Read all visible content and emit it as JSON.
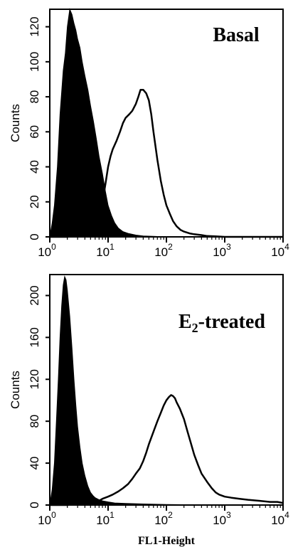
{
  "chart_data": [
    {
      "type": "area",
      "title": "Basal",
      "xlabel": "",
      "ylabel": "Counts",
      "xscale": "log",
      "xlim": [
        1,
        10000
      ],
      "ylim": [
        0,
        130
      ],
      "yticks": [
        0,
        20,
        40,
        60,
        80,
        100,
        120
      ],
      "xticks": [
        {
          "base": "10",
          "exp": "0"
        },
        {
          "base": "10",
          "exp": "1"
        },
        {
          "base": "10",
          "exp": "2"
        },
        {
          "base": "10",
          "exp": "3"
        },
        {
          "base": "10",
          "exp": "4"
        }
      ],
      "series": [
        {
          "style": "filled",
          "color": "#000000",
          "x": [
            1,
            1.1,
            1.2,
            1.35,
            1.5,
            1.7,
            1.85,
            2,
            2.2,
            2.4,
            2.6,
            2.8,
            3,
            3.3,
            3.6,
            4,
            4.5,
            5,
            5.6,
            6.3,
            7,
            8,
            9,
            10,
            11.5,
            13,
            15,
            18,
            22,
            30,
            40,
            60,
            100
          ],
          "y": [
            0,
            8,
            18,
            40,
            70,
            95,
            105,
            120,
            130,
            127,
            122,
            118,
            113,
            108,
            100,
            92,
            84,
            75,
            66,
            56,
            46,
            36,
            26,
            18,
            12,
            8,
            5,
            3,
            2,
            1,
            0.5,
            0.3,
            0
          ]
        },
        {
          "style": "outline",
          "color": "#000000",
          "x": [
            1,
            2,
            3,
            4,
            5,
            6,
            7,
            8,
            9,
            10,
            11,
            12,
            14,
            16,
            18,
            20,
            23,
            26,
            30,
            33,
            36,
            40,
            45,
            50,
            55,
            60,
            70,
            80,
            90,
            100,
            115,
            130,
            150,
            175,
            200,
            250,
            300,
            400,
            500,
            700,
            1000,
            10000
          ],
          "y": [
            0,
            0,
            1,
            2,
            4,
            7,
            12,
            20,
            30,
            40,
            46,
            50,
            55,
            60,
            65,
            68,
            70,
            72,
            76,
            80,
            84,
            84,
            82,
            78,
            70,
            60,
            44,
            32,
            24,
            18,
            13,
            9,
            6,
            4,
            3,
            2,
            1.5,
            1,
            0.5,
            0.3,
            0,
            0
          ]
        }
      ]
    },
    {
      "type": "area",
      "title": "E₂-treated",
      "title_base": "E",
      "title_sub": "2",
      "title_rest": "-treated",
      "xlabel": "FL1-Height",
      "ylabel": "Counts",
      "xscale": "log",
      "xlim": [
        1,
        10000
      ],
      "ylim": [
        0,
        220
      ],
      "yticks": [
        0,
        40,
        80,
        120,
        160,
        200
      ],
      "xticks": [
        {
          "base": "10",
          "exp": "0"
        },
        {
          "base": "10",
          "exp": "1"
        },
        {
          "base": "10",
          "exp": "2"
        },
        {
          "base": "10",
          "exp": "3"
        },
        {
          "base": "10",
          "exp": "4"
        }
      ],
      "series": [
        {
          "style": "filled",
          "color": "#000000",
          "x": [
            1,
            1.1,
            1.2,
            1.3,
            1.4,
            1.5,
            1.6,
            1.7,
            1.8,
            1.9,
            2,
            2.2,
            2.4,
            2.6,
            2.8,
            3,
            3.3,
            3.6,
            4,
            4.5,
            5,
            5.5,
            6,
            7,
            8,
            10,
            13,
            20,
            40,
            100,
            300,
            1000
          ],
          "y": [
            0,
            15,
            40,
            80,
            120,
            160,
            190,
            210,
            218,
            215,
            205,
            180,
            150,
            120,
            95,
            75,
            55,
            40,
            28,
            18,
            12,
            9,
            7,
            5,
            4,
            3,
            2,
            1.5,
            1,
            0.5,
            0.3,
            0
          ]
        },
        {
          "style": "outline",
          "color": "#000000",
          "x": [
            1,
            2,
            3,
            4,
            5,
            6,
            7,
            8,
            10,
            12,
            15,
            18,
            22,
            26,
            30,
            35,
            40,
            45,
            50,
            60,
            70,
            80,
            90,
            100,
            110,
            120,
            130,
            140,
            150,
            170,
            200,
            230,
            260,
            300,
            350,
            400,
            500,
            600,
            700,
            800,
            1000,
            1300,
            1800,
            2500,
            4000,
            6000,
            8000,
            10000
          ],
          "y": [
            0,
            0,
            1,
            1,
            2,
            3,
            4,
            6,
            8,
            10,
            13,
            16,
            20,
            25,
            30,
            35,
            42,
            50,
            58,
            70,
            80,
            88,
            95,
            100,
            103,
            105,
            104,
            102,
            98,
            92,
            82,
            70,
            60,
            48,
            38,
            30,
            22,
            16,
            12,
            10,
            8,
            7,
            6,
            5,
            4,
            3,
            3,
            2
          ]
        }
      ]
    }
  ]
}
